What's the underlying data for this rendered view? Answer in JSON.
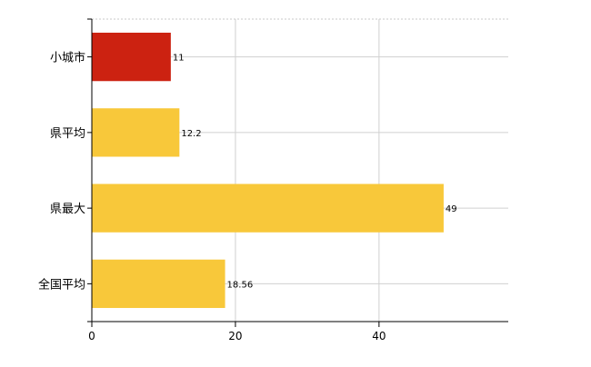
{
  "chart_data": {
    "type": "bar",
    "orientation": "horizontal",
    "categories": [
      "小城市",
      "県平均",
      "県最大",
      "全国平均"
    ],
    "values": [
      11,
      12.2,
      49,
      18.56
    ],
    "value_labels": [
      "11",
      "12.2",
      "49",
      "18.56"
    ],
    "bar_colors": [
      "#cc2211",
      "#f8c83a",
      "#f8c83a",
      "#f8c83a"
    ],
    "xlim": [
      0,
      58
    ],
    "x_ticks": [
      0,
      20,
      40
    ],
    "x_tick_labels": [
      "0",
      "20",
      "40"
    ],
    "grid": true,
    "title": "",
    "xlabel": "",
    "ylabel": ""
  }
}
